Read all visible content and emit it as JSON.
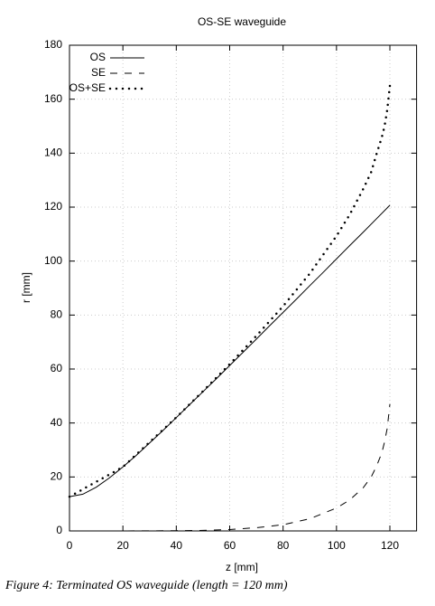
{
  "chart_data": {
    "type": "line",
    "title": "OS-SE waveguide",
    "x_label": "z [mm]",
    "y_label": "r [mm]",
    "xlim": [
      0,
      130
    ],
    "ylim": [
      0,
      180
    ],
    "xticks": [
      0,
      20,
      40,
      60,
      80,
      100,
      120
    ],
    "yticks": [
      0,
      20,
      40,
      60,
      80,
      100,
      120,
      140,
      160,
      180
    ],
    "grid": true,
    "legend": "upper left",
    "series": [
      {
        "name": "OS",
        "color": "#000000",
        "dash": "solid",
        "x": [
          0,
          5,
          10,
          15,
          20,
          25,
          30,
          35,
          40,
          45,
          50,
          55,
          60,
          65,
          70,
          75,
          80,
          85,
          90,
          95,
          100,
          105,
          110,
          115,
          120
        ],
        "values": [
          12.7,
          13.6,
          16.2,
          19.7,
          23.7,
          28.0,
          32.6,
          37.2,
          42.0,
          46.8,
          51.6,
          56.4,
          61.3,
          66.2,
          71.1,
          76.1,
          81.0,
          85.9,
          90.9,
          95.8,
          100.8,
          105.8,
          110.7,
          115.7,
          120.7
        ]
      },
      {
        "name": "SE",
        "color": "#000000",
        "dash": "dashed",
        "x": [
          0,
          20,
          40,
          50,
          60,
          70,
          80,
          90,
          100,
          105,
          110,
          113,
          115,
          117,
          118,
          119,
          120
        ],
        "values": [
          0,
          0,
          0.1,
          0.2,
          0.5,
          1.2,
          2.3,
          4.5,
          8.5,
          11.5,
          16,
          20,
          24,
          29,
          33,
          38,
          47
        ]
      },
      {
        "name": "OS+SE",
        "color": "#000000",
        "dash": "dotted",
        "x": [
          0,
          20,
          40,
          50,
          60,
          70,
          80,
          90,
          100,
          105,
          110,
          113,
          115,
          117,
          118,
          119,
          120
        ],
        "values": [
          12.7,
          23.7,
          42.1,
          51.8,
          61.8,
          72.3,
          83.3,
          95.4,
          109.3,
          117.3,
          126.7,
          133,
          139.7,
          146,
          150,
          156,
          165
        ]
      }
    ]
  },
  "caption": "Figure 4: Terminated OS waveguide (length = 120 mm)"
}
